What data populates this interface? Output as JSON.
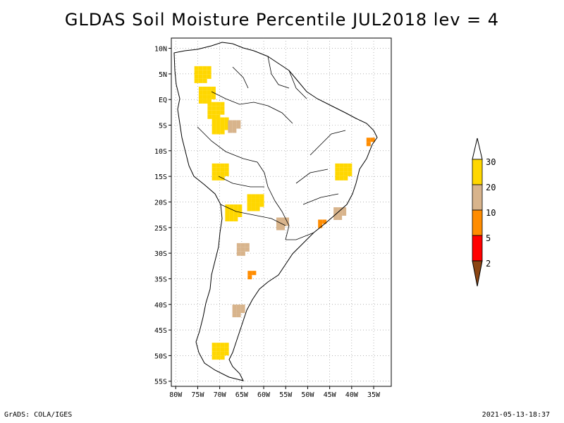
{
  "title": "GLDAS Soil Moisture Percentile JUL2018 lev = 4",
  "footer": {
    "left": "GrADS: COLA/IGES",
    "right": "2021-05-13-18:37"
  },
  "map": {
    "region": "South America",
    "lon_range": [
      -81,
      -31
    ],
    "lat_range": [
      -56,
      12
    ],
    "grid": "dotted",
    "x_ticks": [
      "80W",
      "75W",
      "70W",
      "65W",
      "60W",
      "55W",
      "50W",
      "45W",
      "40W",
      "35W"
    ],
    "x_tick_values": [
      -80,
      -75,
      -70,
      -65,
      -60,
      -55,
      -50,
      -45,
      -40,
      -35
    ],
    "y_ticks": [
      "10N",
      "5N",
      "EQ",
      "5S",
      "10S",
      "15S",
      "20S",
      "25S",
      "30S",
      "35S",
      "40S",
      "45S",
      "50S",
      "55S"
    ],
    "y_tick_values": [
      10,
      5,
      0,
      -5,
      -10,
      -15,
      -20,
      -25,
      -30,
      -35,
      -40,
      -45,
      -50,
      -55
    ]
  },
  "legend": {
    "labels": [
      "30",
      "20",
      "10",
      "5",
      "2"
    ],
    "colors": {
      "above_30": "#ffffff",
      "c20_30": "#ffd700",
      "c10_20": "#d8b48c",
      "c5_10": "#ff8c00",
      "c2_5": "#ff0000",
      "below_2": "#8b4513"
    }
  },
  "chart_data": {
    "type": "heatmap",
    "title": "GLDAS Soil Moisture Percentile JUL2018 lev = 4",
    "x_axis": "longitude",
    "y_axis": "latitude",
    "xlim": [
      -81,
      -31
    ],
    "ylim": [
      -56,
      12
    ],
    "color_levels": [
      2,
      5,
      10,
      20,
      30
    ],
    "dry_regions": [
      {
        "lon": -67,
        "lat": -5,
        "category": "10-20"
      },
      {
        "lon": -70,
        "lat": -5,
        "category": "20-30"
      },
      {
        "lon": -73,
        "lat": 1,
        "category": "20-30"
      },
      {
        "lon": -74,
        "lat": 5,
        "category": "20-30"
      },
      {
        "lon": -36,
        "lat": -8,
        "category": "5-10"
      },
      {
        "lon": -42,
        "lat": -14,
        "category": "20-30"
      },
      {
        "lon": -43,
        "lat": -22,
        "category": "10-20"
      },
      {
        "lon": -47,
        "lat": -24,
        "category": "5-10"
      },
      {
        "lon": -56,
        "lat": -24,
        "category": "10-20"
      },
      {
        "lon": -62,
        "lat": -20,
        "category": "20-30"
      },
      {
        "lon": -65,
        "lat": -29,
        "category": "10-20"
      },
      {
        "lon": -63,
        "lat": -34,
        "category": "5-10"
      },
      {
        "lon": -67,
        "lat": -22,
        "category": "20-30"
      },
      {
        "lon": -70,
        "lat": -14,
        "category": "20-30"
      },
      {
        "lon": -66,
        "lat": -41,
        "category": "10-20"
      },
      {
        "lon": -70,
        "lat": -49,
        "category": "20-30"
      },
      {
        "lon": -71,
        "lat": -2,
        "category": "20-30"
      }
    ]
  }
}
